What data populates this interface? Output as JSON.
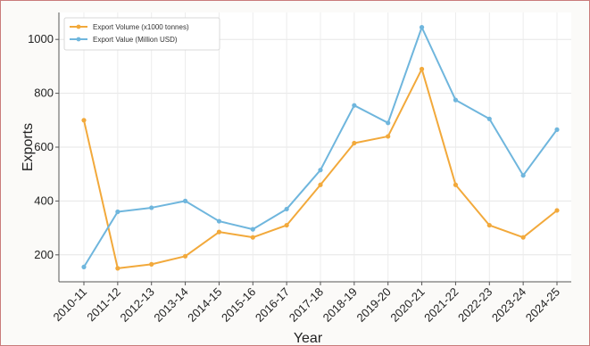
{
  "chart_data": {
    "type": "line",
    "title": "",
    "xlabel": "Year",
    "ylabel": "Exports",
    "categories": [
      "2010-11",
      "2011-12",
      "2012-13",
      "2013-14",
      "2014-15",
      "2015-16",
      "2016-17",
      "2017-18",
      "2018-19",
      "2019-20",
      "2020-21",
      "2021-22",
      "2022-23",
      "2023-24",
      "2024-25"
    ],
    "yticks": [
      200,
      400,
      600,
      800,
      1000
    ],
    "ylim": [
      100,
      1100
    ],
    "grid": true,
    "legend_position": "top-left",
    "series": [
      {
        "name": "Export Volume (x1000 tonnes)",
        "color": "#f2a93b",
        "values": [
          700,
          150,
          165,
          195,
          285,
          265,
          310,
          460,
          615,
          640,
          890,
          460,
          310,
          265,
          365
        ]
      },
      {
        "name": "Export Value (Million USD)",
        "color": "#6fb6dd",
        "values": [
          155,
          360,
          375,
          400,
          325,
          295,
          370,
          515,
          755,
          690,
          1045,
          775,
          705,
          495,
          665
        ]
      }
    ]
  }
}
